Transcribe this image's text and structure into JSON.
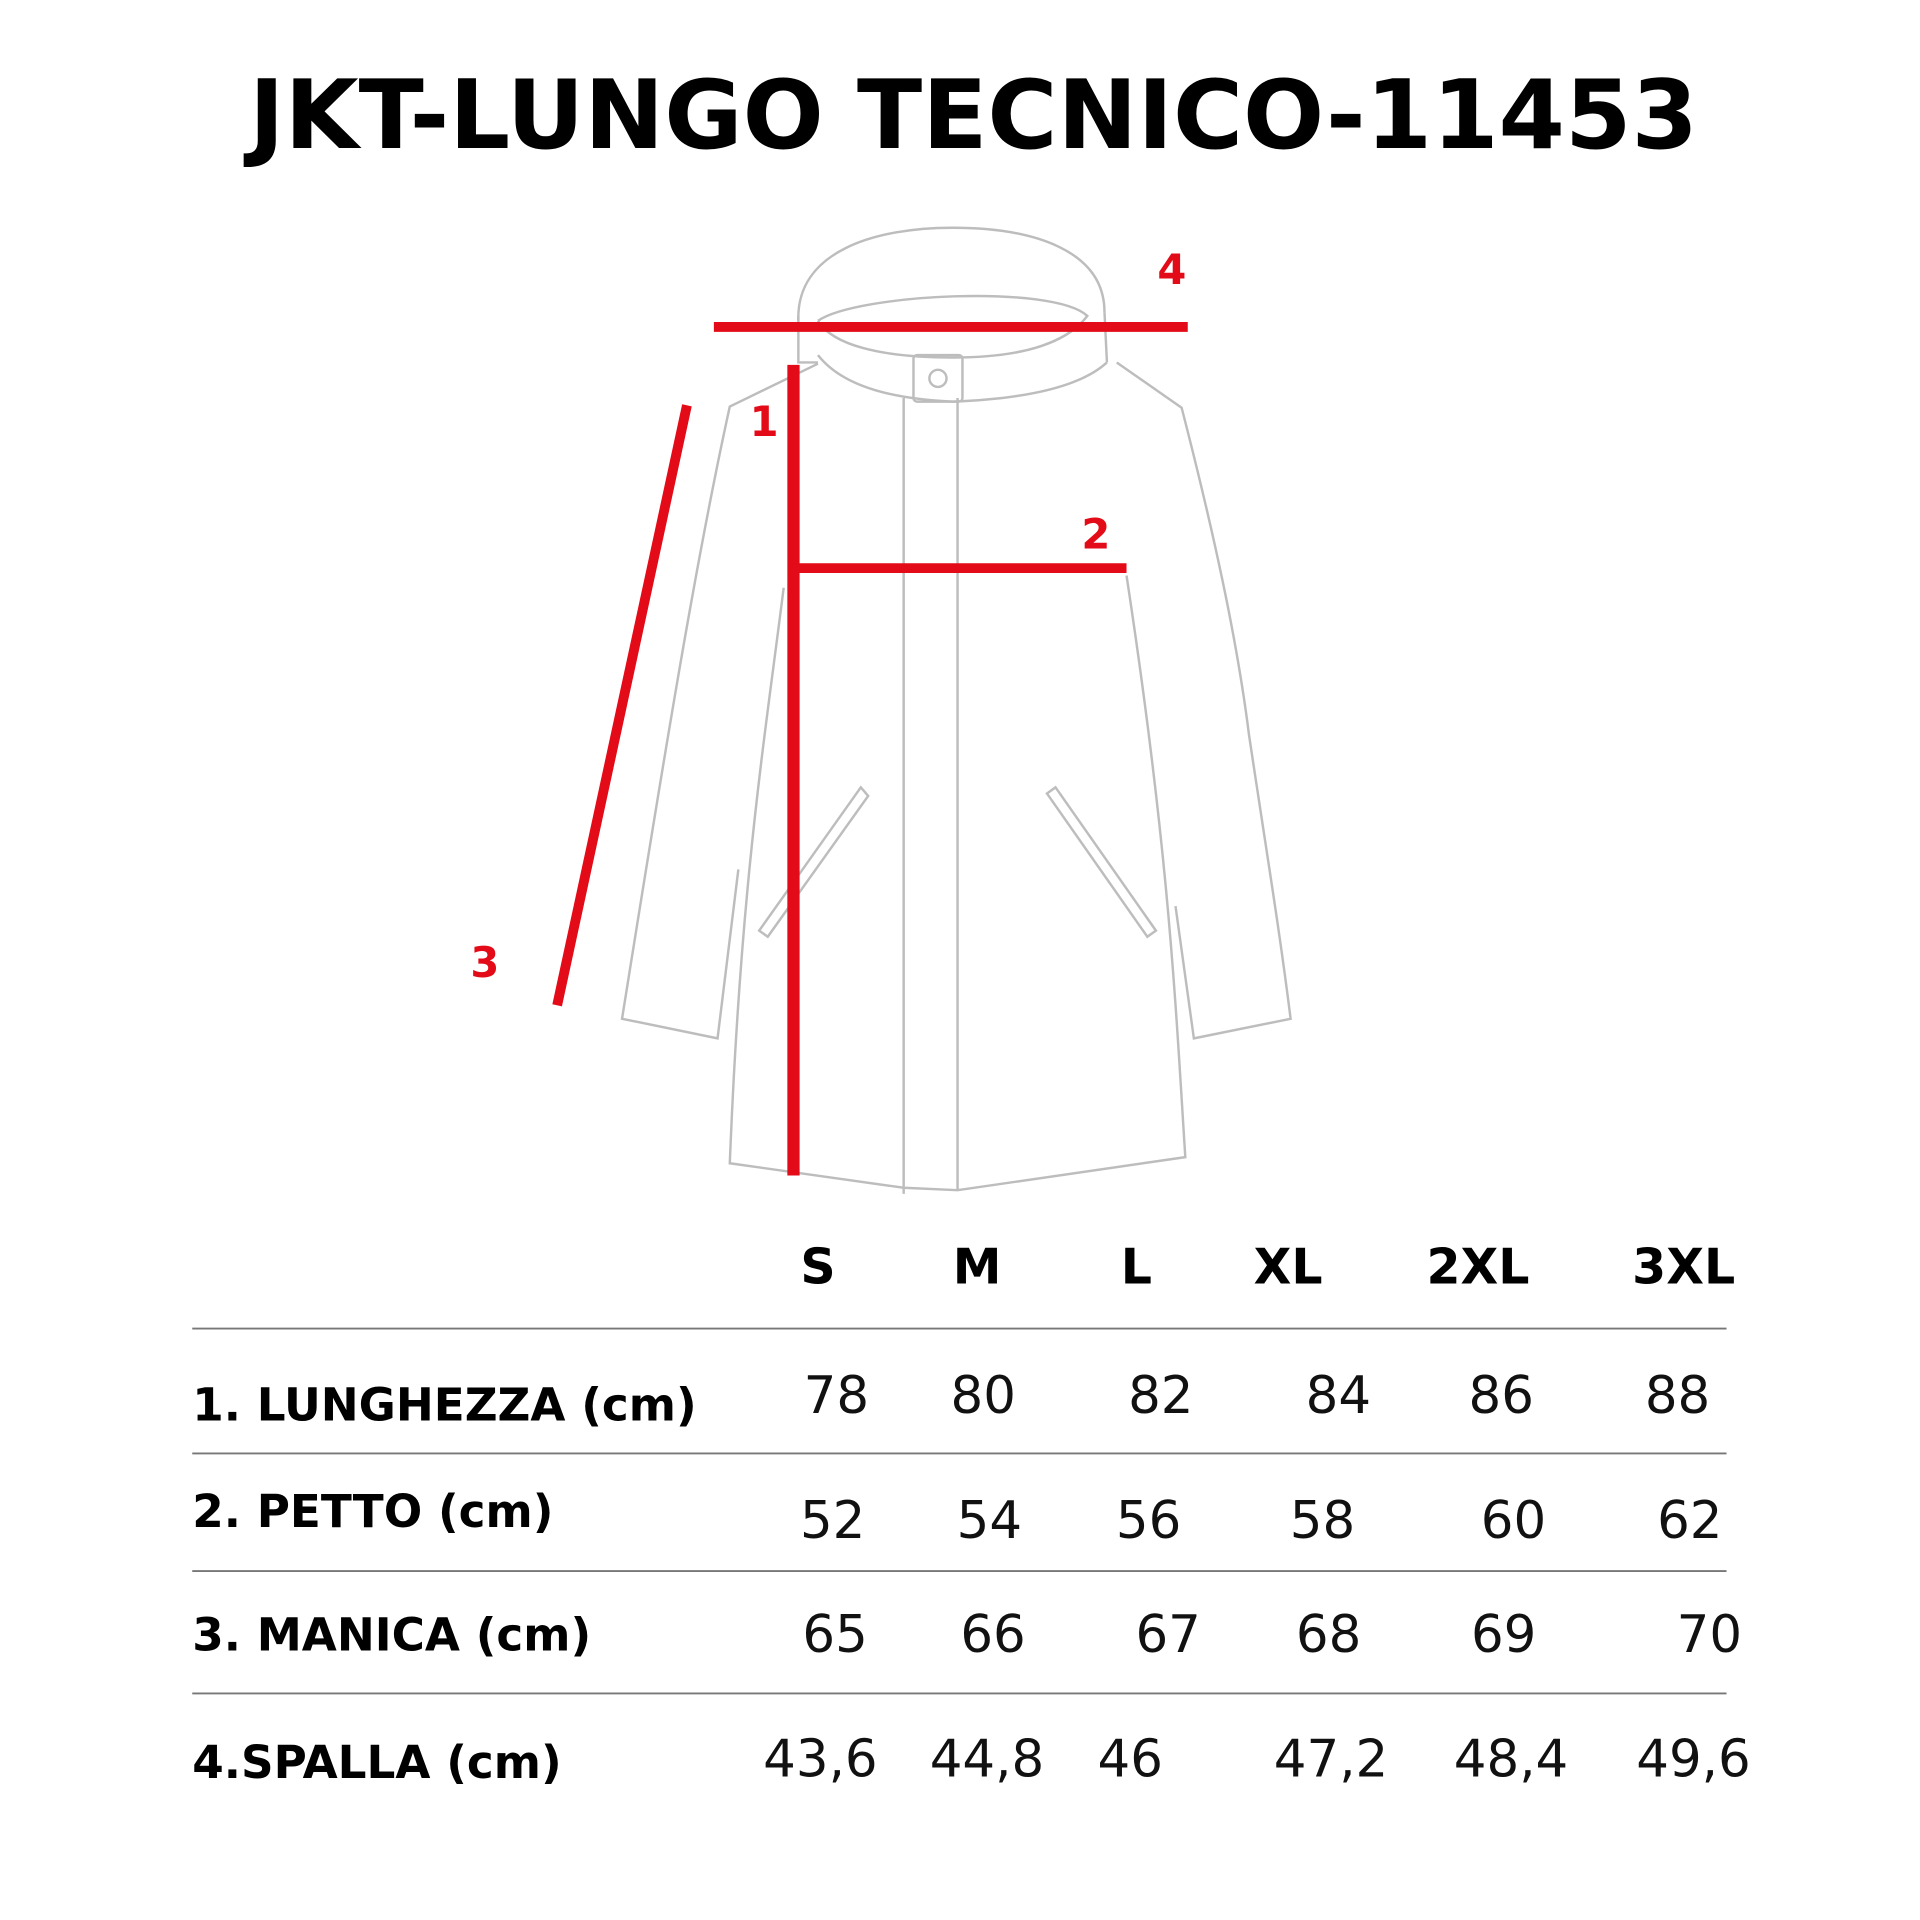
{
  "title": "JKT-LUNGO TECNICO-11453",
  "accent_color": "#e30b17",
  "diagram": {
    "markers": [
      "1",
      "2",
      "3",
      "4"
    ]
  },
  "table": {
    "sizes": [
      "S",
      "M",
      "L",
      "XL",
      "2XL",
      "3XL"
    ],
    "rows": [
      {
        "label": "1. LUNGHEZZA (cm)",
        "values": [
          "78",
          "80",
          "82",
          "84",
          "86",
          "88"
        ]
      },
      {
        "label": "2. PETTO (cm)",
        "values": [
          "52",
          "54",
          "56",
          "58",
          "60",
          "62"
        ]
      },
      {
        "label": "3. MANICA (cm)",
        "values": [
          "65",
          "66",
          "67",
          "68",
          "69",
          "70"
        ]
      },
      {
        "label": "4.SPALLA (cm)",
        "values": [
          "43,6",
          "44,8",
          "46",
          "47,2",
          "48,4",
          "49,6"
        ]
      }
    ]
  }
}
